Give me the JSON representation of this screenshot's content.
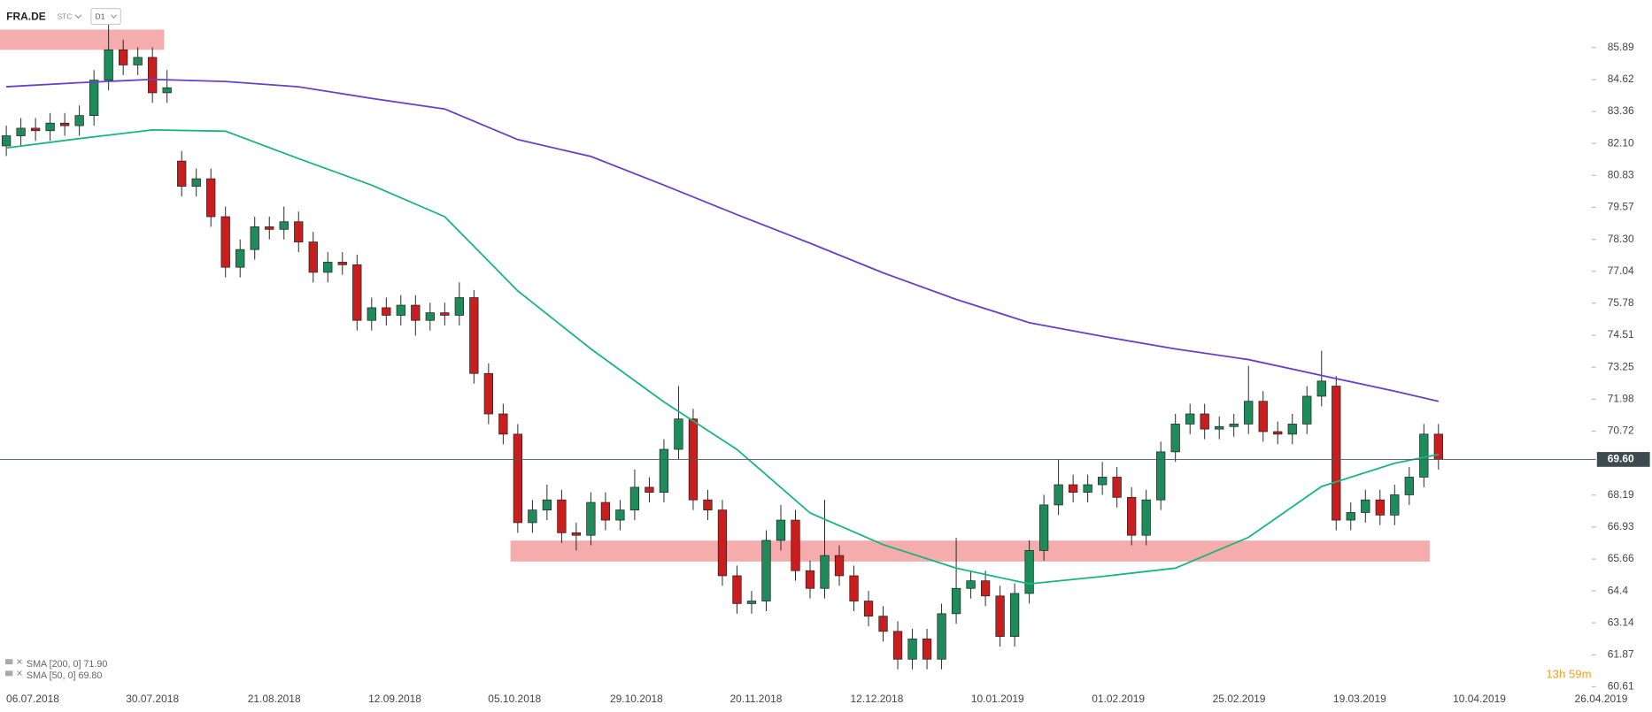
{
  "chart_data": {
    "type": "candlestick",
    "title": "FRA.DE",
    "symbol_type": "STC",
    "timeframe": "D1",
    "open": [
      82.0,
      82.4,
      82.7,
      82.6,
      82.9,
      82.8,
      83.2,
      84.6,
      85.8,
      85.2,
      85.5,
      84.1,
      81.4,
      80.4,
      80.7,
      79.2,
      77.2,
      77.9,
      78.8,
      78.7,
      79.0,
      78.2,
      77.0,
      77.4,
      77.3,
      75.1,
      75.6,
      75.3,
      75.7,
      75.1,
      75.4,
      75.3,
      76.0,
      73.0,
      71.4,
      70.6,
      67.1,
      67.6,
      68.0,
      66.7,
      66.6,
      67.9,
      67.2,
      67.6,
      68.5,
      68.3,
      70.0,
      71.2,
      68.0,
      67.6,
      65.0,
      63.9,
      64.0,
      66.4,
      67.2,
      65.2,
      64.5,
      65.8,
      65.0,
      64.0,
      63.4,
      62.8,
      61.7,
      62.5,
      61.7,
      63.5,
      64.5,
      64.8,
      64.2,
      62.6,
      64.3,
      66.0,
      67.8,
      68.6,
      68.3,
      68.6,
      68.9,
      68.1,
      66.6,
      68.0,
      69.9,
      71.0,
      71.4,
      70.8,
      70.9,
      71.0,
      71.9,
      70.7,
      70.6,
      71.0,
      72.1,
      72.5,
      67.2,
      67.5,
      68.0,
      67.4,
      68.2,
      68.9,
      70.6
    ],
    "high": [
      82.8,
      83.1,
      83.1,
      83.3,
      83.3,
      83.6,
      85.0,
      87.0,
      86.2,
      85.9,
      85.9,
      85.0,
      81.8,
      81.1,
      81.1,
      79.6,
      78.3,
      79.2,
      79.2,
      79.6,
      79.4,
      78.6,
      77.8,
      77.8,
      77.7,
      76.0,
      76.0,
      76.1,
      76.1,
      75.8,
      75.8,
      76.6,
      76.3,
      73.4,
      71.8,
      71.0,
      68.0,
      68.6,
      68.4,
      67.1,
      68.3,
      68.3,
      68.0,
      69.2,
      68.9,
      70.4,
      72.5,
      71.6,
      68.4,
      68.0,
      65.4,
      64.4,
      66.8,
      67.8,
      67.6,
      65.6,
      68.0,
      66.2,
      65.4,
      64.4,
      63.8,
      63.2,
      62.9,
      62.9,
      63.9,
      66.5,
      65.2,
      65.2,
      64.6,
      64.7,
      66.4,
      68.2,
      69.6,
      69.0,
      69.0,
      69.5,
      69.3,
      68.5,
      68.4,
      70.3,
      71.4,
      71.8,
      71.8,
      71.3,
      71.4,
      73.3,
      72.3,
      71.1,
      71.4,
      72.5,
      73.9,
      72.9,
      67.9,
      68.4,
      68.4,
      68.6,
      69.3,
      71.0,
      71.0
    ],
    "low": [
      81.6,
      82.0,
      82.2,
      82.2,
      82.4,
      82.4,
      82.8,
      84.2,
      84.8,
      84.8,
      83.7,
      83.7,
      80.0,
      80.0,
      78.8,
      76.8,
      76.8,
      77.5,
      78.3,
      78.3,
      77.8,
      76.6,
      76.6,
      76.9,
      74.7,
      74.7,
      74.9,
      74.9,
      74.5,
      74.7,
      74.9,
      74.9,
      72.6,
      71.0,
      70.2,
      66.7,
      66.7,
      67.2,
      66.3,
      66.0,
      66.2,
      66.8,
      66.8,
      67.2,
      67.9,
      67.9,
      69.6,
      67.6,
      67.2,
      64.6,
      63.5,
      63.5,
      63.6,
      66.0,
      64.8,
      64.1,
      64.1,
      64.6,
      63.6,
      63.0,
      62.4,
      61.3,
      61.3,
      61.3,
      61.3,
      63.1,
      64.1,
      63.8,
      62.2,
      62.2,
      63.9,
      65.6,
      67.4,
      67.9,
      67.9,
      68.2,
      67.7,
      66.2,
      66.2,
      67.6,
      69.5,
      70.6,
      70.4,
      70.4,
      70.5,
      70.6,
      70.3,
      70.2,
      70.2,
      70.6,
      71.7,
      66.8,
      66.8,
      67.1,
      67.0,
      67.0,
      67.8,
      68.5,
      69.2
    ],
    "close": [
      82.4,
      82.7,
      82.6,
      82.9,
      82.8,
      83.2,
      84.6,
      85.8,
      85.2,
      85.5,
      84.1,
      84.3,
      80.4,
      80.7,
      79.2,
      77.2,
      77.9,
      78.8,
      78.7,
      79.0,
      78.2,
      77.0,
      77.4,
      77.3,
      75.1,
      75.6,
      75.3,
      75.7,
      75.1,
      75.4,
      75.3,
      76.0,
      73.0,
      71.4,
      70.6,
      67.1,
      67.6,
      68.0,
      66.7,
      66.6,
      67.9,
      67.2,
      67.6,
      68.5,
      68.3,
      70.0,
      71.2,
      68.0,
      67.6,
      65.0,
      63.9,
      64.0,
      66.4,
      67.2,
      65.2,
      64.5,
      65.8,
      65.0,
      64.0,
      63.4,
      62.8,
      61.7,
      62.5,
      61.7,
      63.5,
      64.5,
      64.8,
      64.2,
      62.6,
      64.3,
      66.0,
      67.8,
      68.6,
      68.3,
      68.6,
      68.9,
      68.1,
      66.6,
      68.0,
      69.9,
      71.0,
      71.4,
      70.8,
      70.9,
      71.0,
      71.9,
      70.7,
      70.6,
      71.0,
      72.1,
      72.7,
      67.2,
      67.5,
      68.0,
      67.4,
      68.2,
      68.9,
      70.6,
      69.6
    ],
    "up_color": "#1e8c5a",
    "down_color": "#c81e1e",
    "series": [
      {
        "name": "SMA [200, 0] 71.90",
        "color": "#6a3fc8",
        "x": [
          0,
          5,
          10,
          15,
          20,
          25,
          30,
          35,
          40,
          45,
          50,
          55,
          60,
          65,
          70,
          75,
          80,
          85,
          90,
          95,
          98
        ],
        "values": [
          84.34,
          84.5,
          84.63,
          84.55,
          84.34,
          83.88,
          83.46,
          82.25,
          81.58,
          80.45,
          79.28,
          78.15,
          76.98,
          75.93,
          75.01,
          74.47,
          73.97,
          73.55,
          72.92,
          72.3,
          71.9
        ]
      },
      {
        "name": "SMA [50, 0] 69.80",
        "color": "#18b67e",
        "x": [
          0,
          5,
          10,
          15,
          20,
          25,
          30,
          35,
          40,
          45,
          50,
          55,
          60,
          65,
          70,
          75,
          80,
          85,
          90,
          95,
          98
        ],
        "values": [
          81.92,
          82.29,
          82.63,
          82.58,
          81.5,
          80.45,
          79.2,
          76.27,
          73.97,
          71.87,
          69.99,
          67.48,
          66.23,
          65.3,
          64.68,
          64.97,
          65.3,
          66.52,
          68.53,
          69.45,
          69.8
        ]
      }
    ],
    "zones": [
      {
        "start": -0.43,
        "end": 10.8,
        "from": 85.8,
        "to": 86.6,
        "color": "#f4a3a3"
      },
      {
        "start": 34.5,
        "end": 97.4,
        "from": 65.56,
        "to": 66.39,
        "color": "#f4a3a3"
      }
    ],
    "last_price": {
      "value": 69.6,
      "label": "69.60"
    },
    "countdown": "13h 59m",
    "xlim": [
      -0.43,
      112.61
    ],
    "ylim": [
      60.49,
      87.77
    ],
    "xticks": [
      {
        "value": 1.81,
        "label": "06.07.2018"
      },
      {
        "value": 10.0,
        "label": "30.07.2018"
      },
      {
        "value": 18.33,
        "label": "21.08.2018"
      },
      {
        "value": 26.59,
        "label": "12.09.2018"
      },
      {
        "value": 34.78,
        "label": "05.10.2018"
      },
      {
        "value": 43.12,
        "label": "29.10.2018"
      },
      {
        "value": 51.3,
        "label": "20.11.2018"
      },
      {
        "value": 59.57,
        "label": "12.12.2018"
      },
      {
        "value": 67.83,
        "label": "10.01.2019"
      },
      {
        "value": 76.09,
        "label": "01.02.2019"
      },
      {
        "value": 84.35,
        "label": "25.02.2019"
      },
      {
        "value": 92.61,
        "label": "19.03.2019"
      },
      {
        "value": 100.8,
        "label": "10.04.2019"
      },
      {
        "value": 109.13,
        "label": "26.04.2019"
      }
    ],
    "yticks": [
      85.89,
      84.62,
      83.36,
      {
        "value": 82.1,
        "label": "82.10"
      },
      80.83,
      79.57,
      {
        "value": 78.3,
        "label": "78.30"
      },
      77.04,
      75.78,
      74.51,
      73.25,
      71.98,
      70.72,
      68.19,
      66.93,
      65.66,
      64.4,
      63.14,
      61.87,
      60.61
    ]
  }
}
